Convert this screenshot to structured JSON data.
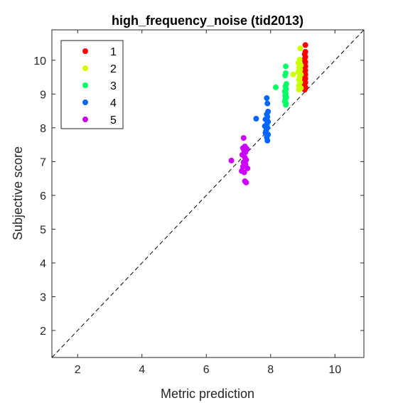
{
  "chart_data": {
    "type": "scatter",
    "title": "high_frequency_noise (tid2013)",
    "xlabel": "Metric prediction",
    "ylabel": "Subjective score",
    "xlim": [
      1.2,
      10.9
    ],
    "ylim": [
      1.2,
      10.9
    ],
    "x_ticks": [
      2,
      4,
      6,
      8,
      10
    ],
    "y_ticks": [
      2,
      3,
      4,
      5,
      6,
      7,
      8,
      9,
      10
    ],
    "grid": false,
    "legend_position": "top-left",
    "reference_line": "diagonal dashed y = x",
    "series": [
      {
        "name": "1",
        "color": "#ff0000",
        "points": [
          [
            9.08,
            10.45
          ],
          [
            9.08,
            10.25
          ],
          [
            9.06,
            10.18
          ],
          [
            9.08,
            10.1
          ],
          [
            9.05,
            10.02
          ],
          [
            9.08,
            9.95
          ],
          [
            9.06,
            9.88
          ],
          [
            9.08,
            9.82
          ],
          [
            9.05,
            9.75
          ],
          [
            9.08,
            9.7
          ],
          [
            9.06,
            9.64
          ],
          [
            9.08,
            9.58
          ],
          [
            9.05,
            9.52
          ],
          [
            9.08,
            9.46
          ],
          [
            9.06,
            9.4
          ],
          [
            9.08,
            9.34
          ],
          [
            9.05,
            9.28
          ],
          [
            9.08,
            9.2
          ],
          [
            9.06,
            9.13
          ]
        ]
      },
      {
        "name": "2",
        "color": "#ccff00",
        "points": [
          [
            8.92,
            10.35
          ],
          [
            8.9,
            10.02
          ],
          [
            8.86,
            9.92
          ],
          [
            8.94,
            9.85
          ],
          [
            8.88,
            9.78
          ],
          [
            8.92,
            9.72
          ],
          [
            8.86,
            9.65
          ],
          [
            8.94,
            9.58
          ],
          [
            8.7,
            9.58
          ],
          [
            8.9,
            9.5
          ],
          [
            8.88,
            9.42
          ],
          [
            8.92,
            9.35
          ],
          [
            8.88,
            9.25
          ],
          [
            8.94,
            9.18
          ],
          [
            8.88,
            9.13
          ]
        ]
      },
      {
        "name": "3",
        "color": "#00ff66",
        "points": [
          [
            8.47,
            9.82
          ],
          [
            8.47,
            9.62
          ],
          [
            8.45,
            9.55
          ],
          [
            8.49,
            9.3
          ],
          [
            8.46,
            9.22
          ],
          [
            8.16,
            9.2
          ],
          [
            8.48,
            9.15
          ],
          [
            8.44,
            9.08
          ],
          [
            8.47,
            9.02
          ],
          [
            8.45,
            8.95
          ],
          [
            8.49,
            8.9
          ],
          [
            8.46,
            8.85
          ],
          [
            8.44,
            8.78
          ],
          [
            8.48,
            8.72
          ],
          [
            8.47,
            8.68
          ]
        ]
      },
      {
        "name": "4",
        "color": "#0066ff",
        "points": [
          [
            7.88,
            8.88
          ],
          [
            7.9,
            8.72
          ],
          [
            7.92,
            8.48
          ],
          [
            7.88,
            8.4
          ],
          [
            7.9,
            8.32
          ],
          [
            7.55,
            8.27
          ],
          [
            7.84,
            8.25
          ],
          [
            7.92,
            8.18
          ],
          [
            7.88,
            8.1
          ],
          [
            7.82,
            8.05
          ],
          [
            7.9,
            8.0
          ],
          [
            7.86,
            7.92
          ],
          [
            7.84,
            7.85
          ],
          [
            7.92,
            7.8
          ],
          [
            7.88,
            7.72
          ],
          [
            7.9,
            7.62
          ]
        ]
      },
      {
        "name": "5",
        "color": "#cc00ff",
        "points": [
          [
            7.16,
            7.7
          ],
          [
            7.2,
            7.45
          ],
          [
            7.14,
            7.4
          ],
          [
            7.26,
            7.38
          ],
          [
            7.18,
            7.32
          ],
          [
            7.22,
            7.28
          ],
          [
            7.12,
            7.2
          ],
          [
            7.2,
            7.12
          ],
          [
            7.24,
            7.05
          ],
          [
            6.78,
            7.03
          ],
          [
            7.16,
            6.98
          ],
          [
            7.22,
            6.92
          ],
          [
            7.14,
            6.85
          ],
          [
            7.28,
            6.8
          ],
          [
            7.1,
            6.72
          ],
          [
            7.18,
            6.68
          ],
          [
            7.2,
            6.42
          ],
          [
            7.24,
            6.38
          ]
        ]
      }
    ]
  }
}
